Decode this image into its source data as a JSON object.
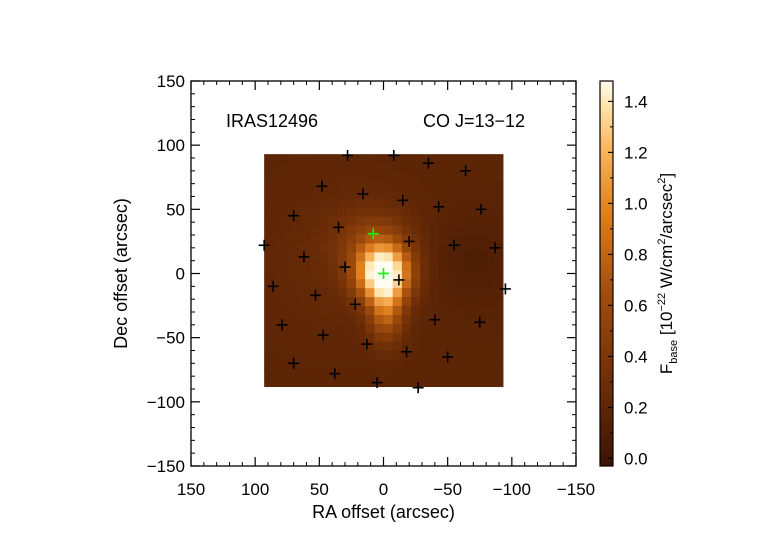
{
  "chart_data": {
    "type": "heatmap",
    "annotations": {
      "source": "IRAS12496",
      "line": "CO J=13−12"
    },
    "xlabel": "RA offset (arcsec)",
    "ylabel": "Dec offset (arcsec)",
    "xlim": [
      150,
      -150
    ],
    "ylim": [
      -150,
      150
    ],
    "x_ticks": [
      150,
      100,
      50,
      0,
      -50,
      -100,
      -150
    ],
    "x_tick_labels": [
      "150",
      "100",
      "50",
      "0",
      "−50",
      "−100",
      "−150"
    ],
    "y_ticks": [
      150,
      100,
      50,
      0,
      -50,
      -100,
      -150
    ],
    "y_tick_labels": [
      "150",
      "100",
      "50",
      "0",
      "−50",
      "−100",
      "−150"
    ],
    "map_extent": {
      "ra": [
        93,
        -93
      ],
      "dec": [
        -88,
        93
      ]
    },
    "emission_peak": {
      "ra": 0,
      "dec": 0,
      "value": 1.45
    },
    "colorbar": {
      "label_main": "F",
      "label_sub": "base",
      "label_units_open": " [10",
      "label_units_exp": "−22",
      "label_units_mid": " W/cm",
      "label_units_exp2": "2",
      "label_units_tail": "/arcsec",
      "label_units_exp3": "2",
      "label_units_close": "]",
      "range": [
        -0.03,
        1.48
      ],
      "ticks": [
        0.0,
        0.2,
        0.4,
        0.6,
        0.8,
        1.0,
        1.2,
        1.4
      ],
      "tick_labels": [
        "0.0",
        "0.2",
        "0.4",
        "0.6",
        "0.8",
        "1.0",
        "1.2",
        "1.4"
      ]
    },
    "series": [
      {
        "type": "scatter",
        "marker": "plus",
        "color": "#000000",
        "points": [
          [
            -8,
            92
          ],
          [
            -35,
            86
          ],
          [
            -64,
            80
          ],
          [
            28,
            92
          ],
          [
            48,
            68
          ],
          [
            16,
            62
          ],
          [
            -15,
            57
          ],
          [
            -43,
            52
          ],
          [
            -76,
            50
          ],
          [
            70,
            45
          ],
          [
            35,
            36
          ],
          [
            -20,
            25
          ],
          [
            -55,
            22
          ],
          [
            -87,
            20
          ],
          [
            93,
            22
          ],
          [
            62,
            13
          ],
          [
            30,
            5
          ],
          [
            -12,
            -5
          ],
          [
            -95,
            -12
          ],
          [
            86,
            -10
          ],
          [
            53,
            -17
          ],
          [
            22,
            -24
          ],
          [
            -40,
            -36
          ],
          [
            -75,
            -38
          ],
          [
            79,
            -40
          ],
          [
            47,
            -48
          ],
          [
            13,
            -55
          ],
          [
            -18,
            -61
          ],
          [
            -50,
            -65
          ],
          [
            70,
            -70
          ],
          [
            38,
            -78
          ],
          [
            5,
            -85
          ],
          [
            -27,
            -89
          ]
        ]
      },
      {
        "type": "scatter",
        "marker": "plus",
        "color": "#00ff00",
        "points": [
          [
            0,
            0
          ],
          [
            8,
            31
          ]
        ]
      }
    ]
  },
  "colors": {
    "map_low": "#3a1404",
    "map_mid": "#c8620f",
    "map_high": "#fffdf4",
    "colorbar_bottom": "#3a1404",
    "colorbar_top": "#fffcf2"
  }
}
